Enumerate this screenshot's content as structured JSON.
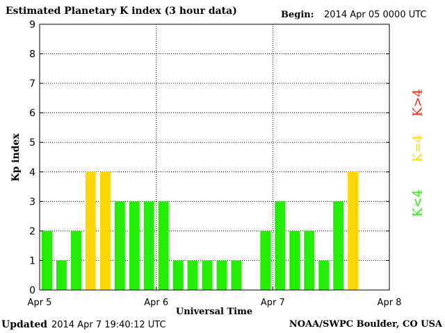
{
  "header": {
    "title": "Estimated Planetary K index (3 hour data)",
    "begin_label": "Begin:",
    "begin_value": "2014 Apr 05 0000 UTC"
  },
  "footer": {
    "updated_label": "Updated",
    "updated_value": "2014 Apr  7 19:40:12 UTC",
    "source": "NOAA/SWPC Boulder, CO USA"
  },
  "legend": [
    {
      "label": "K>4",
      "color": "#ff2000"
    },
    {
      "label": "K=4",
      "color": "#ffd700"
    },
    {
      "label": "K<4",
      "color": "#22ee00"
    }
  ],
  "chart_data": {
    "type": "bar",
    "title": "Estimated Planetary K index (3 hour data)",
    "xlabel": "Universal Time",
    "ylabel": "Kp index",
    "ylim": [
      0,
      9
    ],
    "yticks": [
      0,
      1,
      2,
      3,
      4,
      5,
      6,
      7,
      8,
      9
    ],
    "x_tick_labels": [
      "Apr 5",
      "Apr 6",
      "Apr 7",
      "Apr 8"
    ],
    "slots_per_day": 8,
    "grid": true,
    "colors": {
      "below": "#22ee00",
      "equal": "#ffd700",
      "above": "#ff2000"
    },
    "values": [
      2,
      1,
      2,
      4,
      4,
      3,
      3,
      3,
      3,
      1,
      1,
      1,
      1,
      1,
      null,
      2,
      3,
      2,
      2,
      1,
      3,
      4
    ]
  }
}
